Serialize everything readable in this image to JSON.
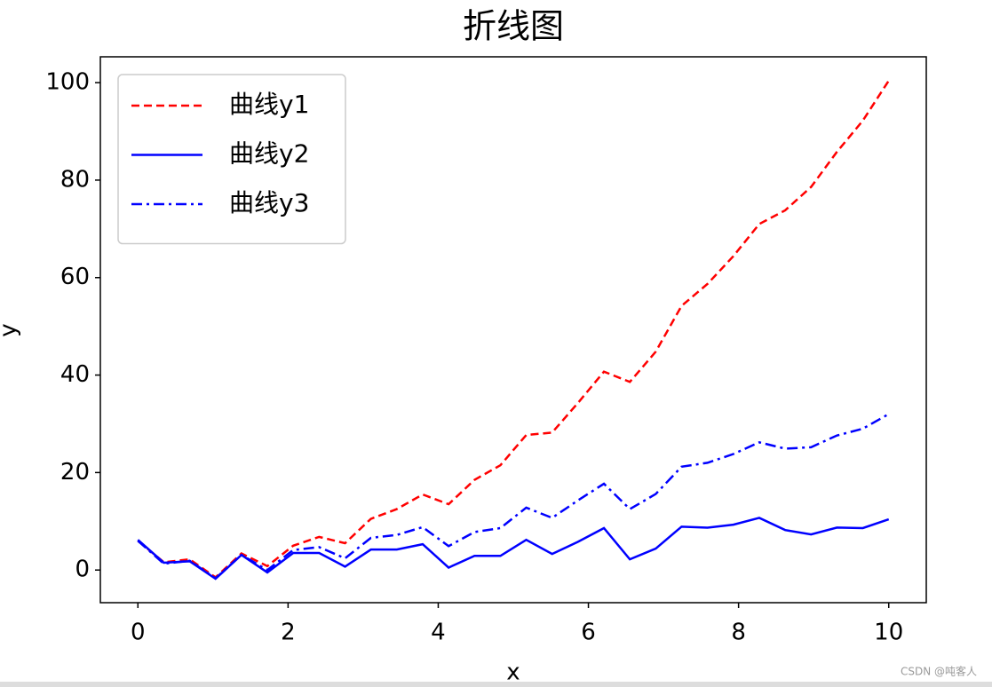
{
  "chart_data": {
    "type": "line",
    "title": "折线图",
    "x_label": "x",
    "y_label": "y",
    "x": [
      0,
      0.345,
      0.69,
      1.034,
      1.379,
      1.724,
      2.069,
      2.414,
      2.759,
      3.103,
      3.448,
      3.793,
      4.138,
      4.483,
      4.828,
      5.172,
      5.517,
      5.862,
      6.207,
      6.552,
      6.897,
      7.241,
      7.586,
      7.931,
      8.276,
      8.621,
      8.966,
      9.31,
      9.655,
      10
    ],
    "series": [
      {
        "name": "曲线y1",
        "color": "#ff0000",
        "linestyle": "dashed",
        "values": [
          6.0,
          1.6,
          2.2,
          -1.5,
          3.4,
          0.8,
          5.0,
          6.8,
          5.5,
          10.5,
          12.5,
          15.5,
          13.5,
          18.5,
          21.5,
          27.7,
          28.2,
          34.3,
          40.7,
          38.6,
          44.8,
          54.2,
          58.7,
          64.4,
          71.0,
          73.8,
          78.6,
          85.8,
          92.2,
          100.4
        ]
      },
      {
        "name": "曲线y2",
        "color": "#0000ff",
        "linestyle": "solid",
        "values": [
          6.2,
          1.5,
          1.8,
          -1.8,
          3.1,
          -0.5,
          3.5,
          3.5,
          0.7,
          4.2,
          4.2,
          5.3,
          0.5,
          2.9,
          2.9,
          6.2,
          3.3,
          5.8,
          8.6,
          2.2,
          4.4,
          8.9,
          8.7,
          9.3,
          10.7,
          8.2,
          7.3,
          8.7,
          8.6,
          10.4
        ]
      },
      {
        "name": "曲线y3",
        "color": "#0000ff",
        "linestyle": "dashdot",
        "values": [
          6.0,
          1.3,
          1.9,
          -1.7,
          3.1,
          0.0,
          4.1,
          4.7,
          2.4,
          6.6,
          7.2,
          8.8,
          4.9,
          7.8,
          8.6,
          12.8,
          10.7,
          14.3,
          17.7,
          12.5,
          15.6,
          21.2,
          22.0,
          23.8,
          26.2,
          24.9,
          25.2,
          27.6,
          29.0,
          32.0
        ]
      }
    ],
    "xlim": [
      -0.5,
      10.5
    ],
    "xticks": [
      0,
      2,
      4,
      6,
      8,
      10
    ],
    "ylim": [
      -6.7,
      105.3
    ],
    "yticks": [
      0,
      20,
      40,
      60,
      80,
      100
    ],
    "legend": "upper left",
    "grid": false
  },
  "watermark": "CSDN @吨客人"
}
